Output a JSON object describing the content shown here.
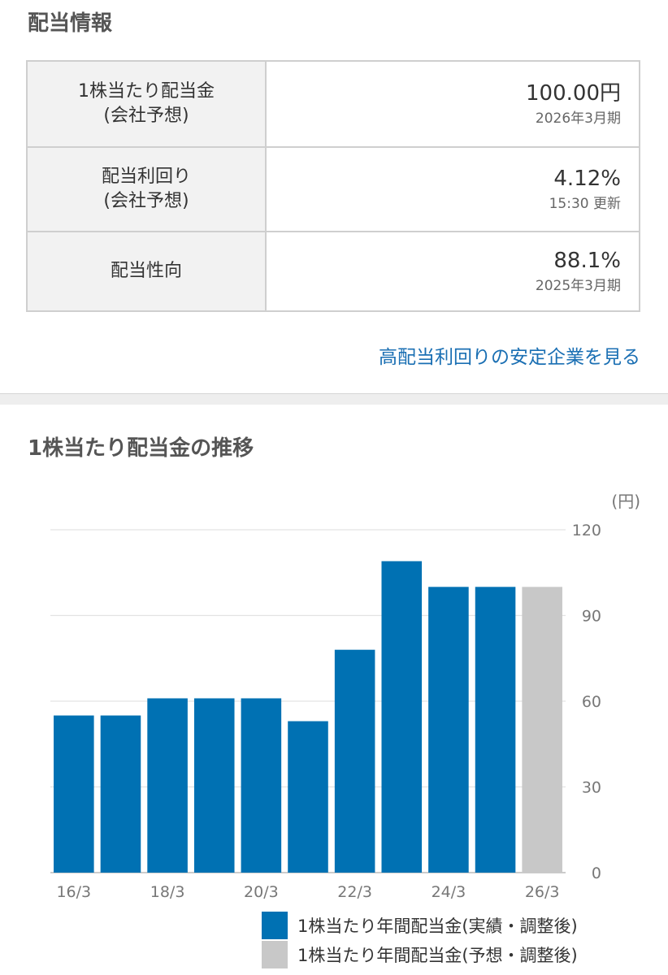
{
  "dividend_info": {
    "title": "配当情報",
    "rows": [
      {
        "label_line1": "1株当たり配当金",
        "label_line2": "(会社予想)",
        "value": "100.00円",
        "sub": "2026年3月期"
      },
      {
        "label_line1": "配当利回り",
        "label_line2": "(会社予想)",
        "value": "4.12%",
        "sub": "15:30 更新"
      },
      {
        "label_line1": "配当性向",
        "label_line2": "",
        "value": "88.1%",
        "sub": "2025年3月期"
      }
    ],
    "link_text": "高配当利回りの安定企業を見る"
  },
  "chart_section": {
    "title": "1株当たり配当金の推移"
  },
  "chart_data": {
    "type": "bar",
    "title": "1株当たり配当金の推移",
    "unit_label": "(円)",
    "categories": [
      "16/3",
      "17/3",
      "18/3",
      "19/3",
      "20/3",
      "21/3",
      "22/3",
      "23/3",
      "24/3",
      "25/3",
      "26/3"
    ],
    "x_tick_labels": [
      "16/3",
      "",
      "18/3",
      "",
      "20/3",
      "",
      "22/3",
      "",
      "24/3",
      "",
      "26/3"
    ],
    "series": [
      {
        "name": "1株当たり年間配当金(実績・調整後)",
        "color": "#0071b3",
        "values": [
          55,
          55,
          61,
          61,
          61,
          53,
          78,
          109,
          100,
          100,
          null
        ]
      },
      {
        "name": "1株当たり年間配当金(予想・調整後)",
        "color": "#c8c8c8",
        "values": [
          null,
          null,
          null,
          null,
          null,
          null,
          null,
          null,
          null,
          null,
          100
        ]
      }
    ],
    "ylim": [
      0,
      120
    ],
    "yticks": [
      0,
      30,
      60,
      90,
      120
    ],
    "y_axis_position": "right",
    "grid": true,
    "legend_position": "bottom-right"
  }
}
